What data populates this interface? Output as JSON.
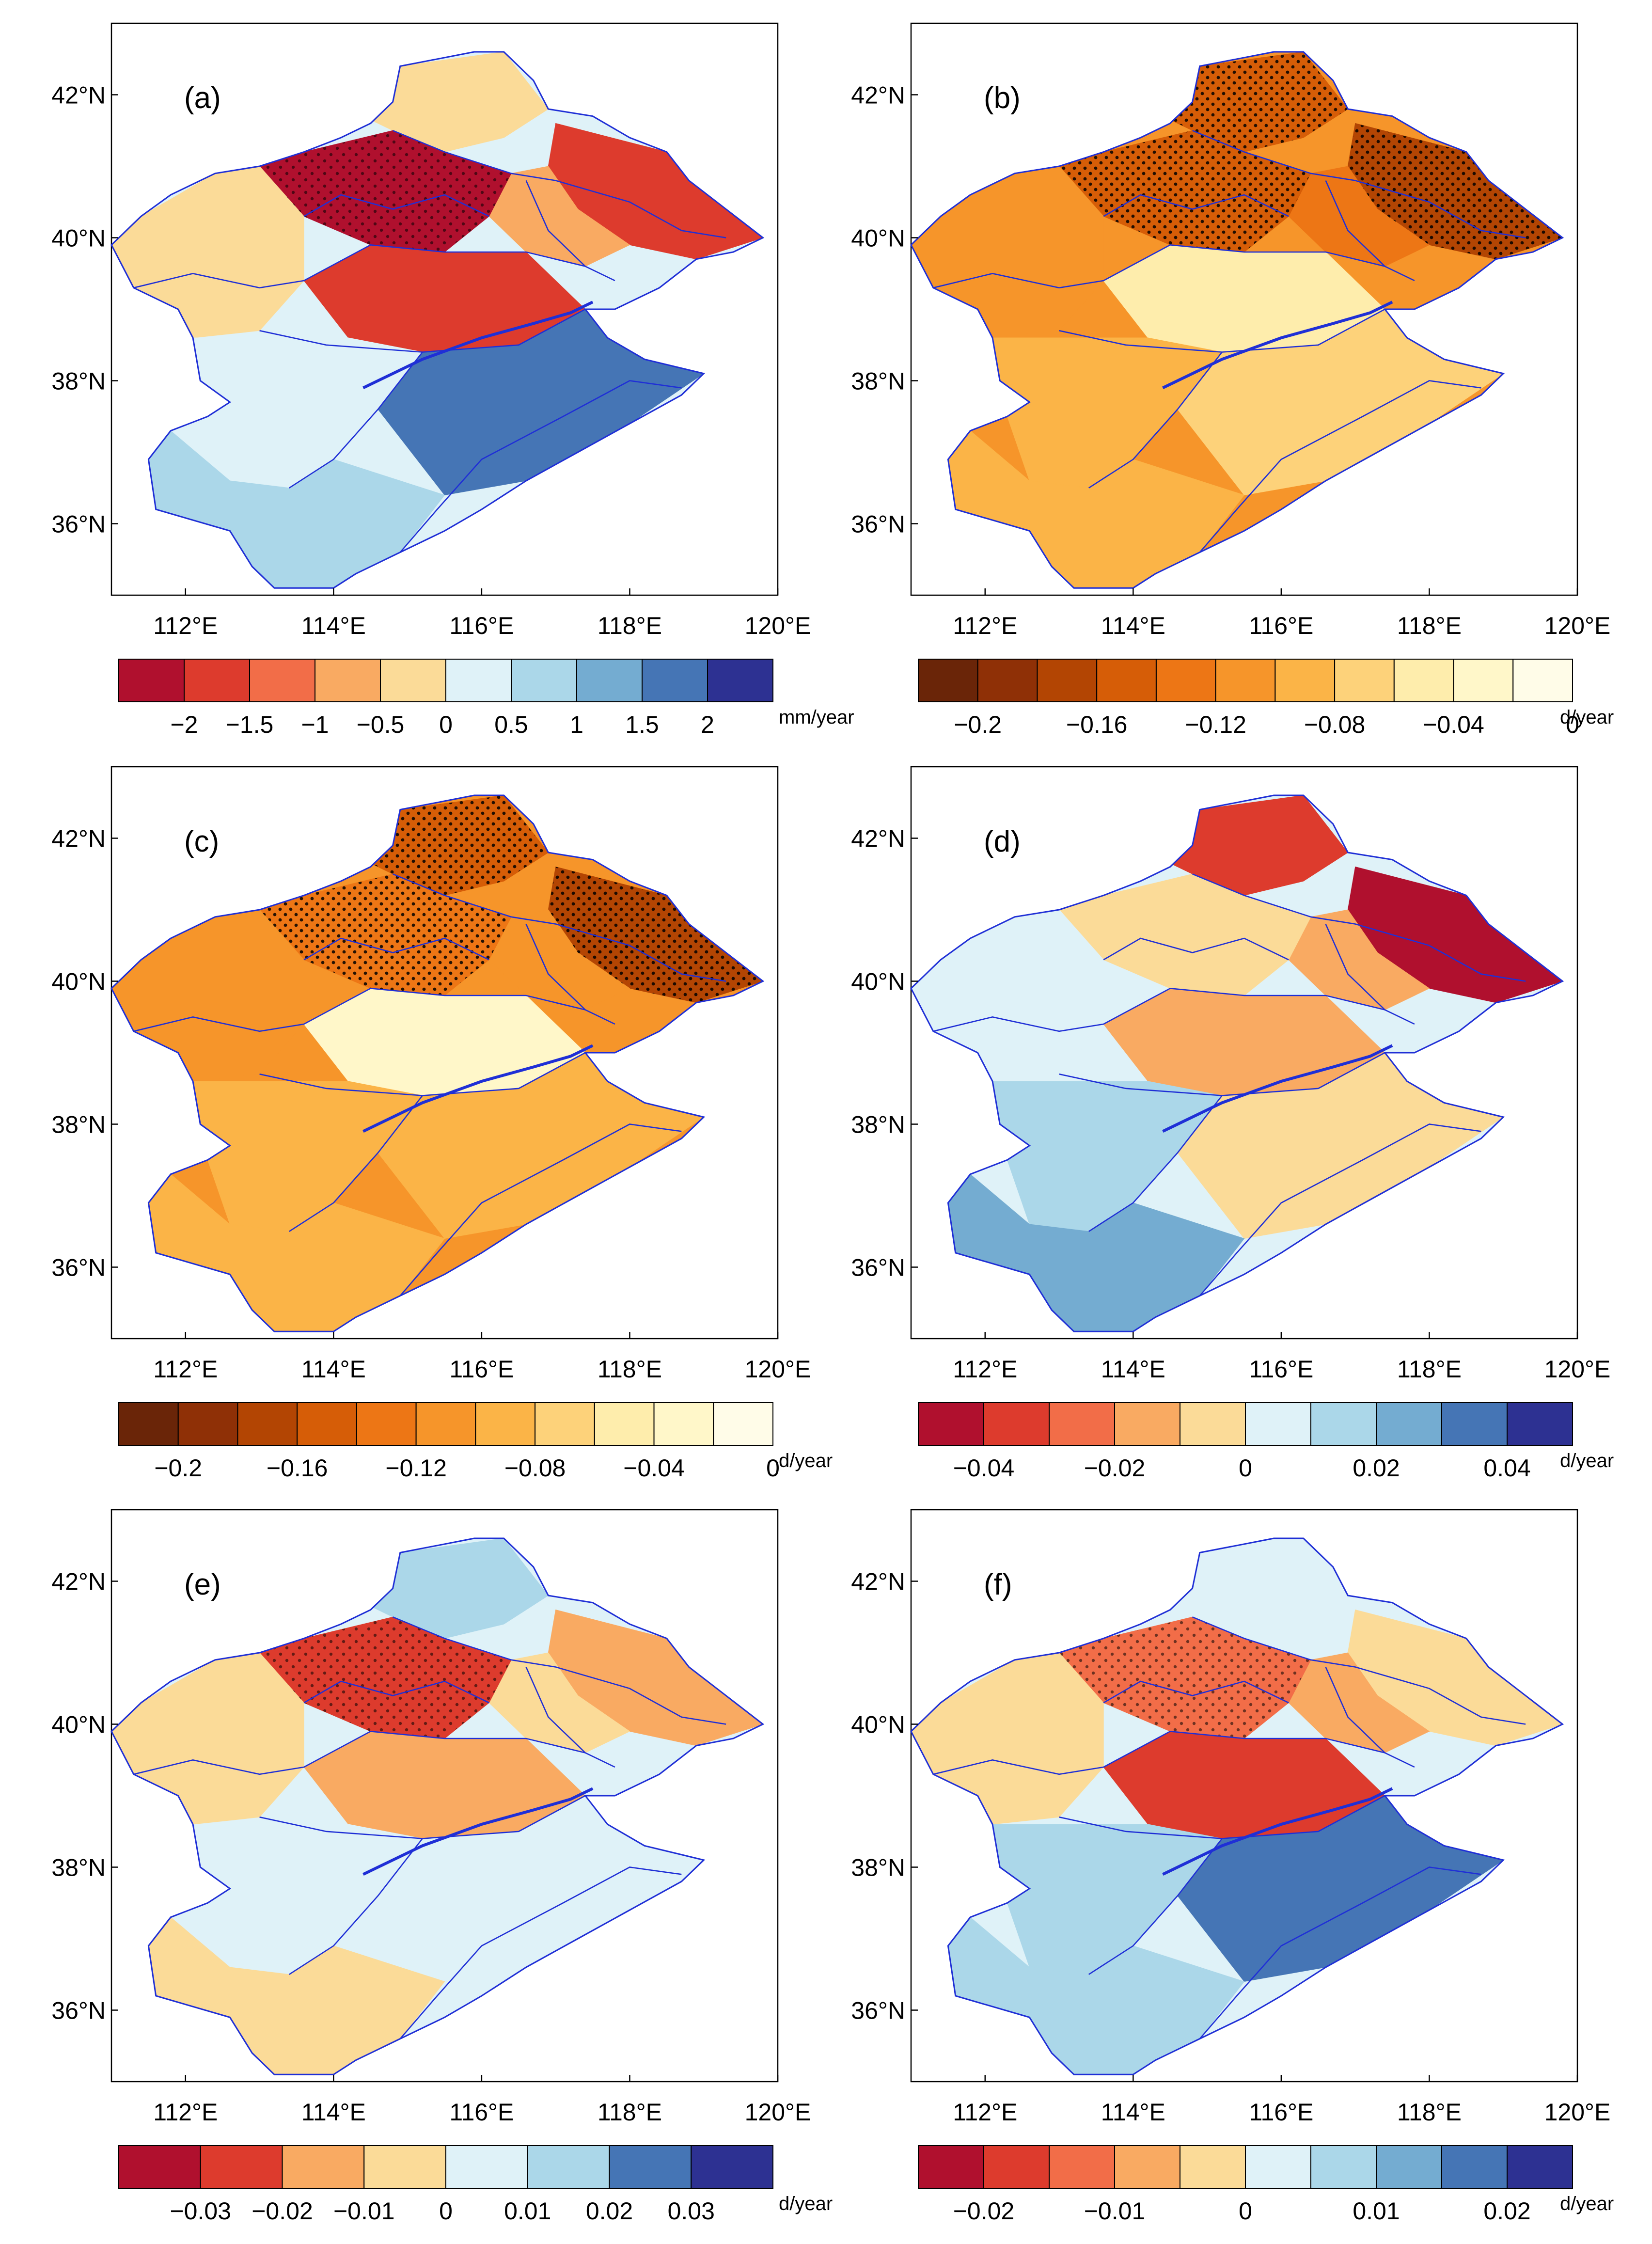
{
  "figure": {
    "lat_labels": [
      "42°N",
      "40°N",
      "38°N",
      "36°N"
    ],
    "lon_labels": [
      "112°E",
      "114°E",
      "116°E",
      "118°E",
      "120°E"
    ]
  },
  "panels": [
    {
      "id": "a",
      "tag": "(a)",
      "unit": "mm/year",
      "stippling": "sparse",
      "colorbar_labels": [
        "−2",
        "−1.5",
        "−1",
        "−0.5",
        "0",
        "0.5",
        "1",
        "1.5",
        "2"
      ],
      "colors": [
        "#b0102e",
        "#dd3b2d",
        "#f26d48",
        "#f9aa62",
        "#fbdb98",
        "#dff2f8",
        "#abd7e9",
        "#74acd1",
        "#4575b5",
        "#2d3192"
      ],
      "regions": [
        {
          "name": "north-mountains",
          "c": 4
        },
        {
          "name": "north-east",
          "c": 1
        },
        {
          "name": "east-plateau",
          "c": 3
        },
        {
          "name": "central-north",
          "c": 0
        },
        {
          "name": "west-plateau",
          "c": 4
        },
        {
          "name": "central-plain",
          "c": 1
        },
        {
          "name": "south-west",
          "c": 5
        },
        {
          "name": "south-east-coast",
          "c": 8
        },
        {
          "name": "far-south",
          "c": 6
        }
      ]
    },
    {
      "id": "b",
      "tag": "(b)",
      "unit": "d/year",
      "stippling": "dense",
      "colorbar_labels": [
        "−0.2",
        "−0.16",
        "−0.12",
        "−0.08",
        "−0.04",
        "0"
      ],
      "colors": [
        "#6a2508",
        "#8f3006",
        "#b34503",
        "#d65d07",
        "#ed7615",
        "#f6952a",
        "#fbb447",
        "#fdd27a",
        "#feedac",
        "#fff7c9",
        "#fffce8"
      ],
      "regions": [
        {
          "name": "north-mountains",
          "c": 3
        },
        {
          "name": "north-east",
          "c": 2
        },
        {
          "name": "east-plateau",
          "c": 4
        },
        {
          "name": "central-north",
          "c": 3
        },
        {
          "name": "west-plateau",
          "c": 5
        },
        {
          "name": "central-plain",
          "c": 8
        },
        {
          "name": "south-west",
          "c": 6
        },
        {
          "name": "south-east-coast",
          "c": 7
        },
        {
          "name": "far-south",
          "c": 6
        }
      ]
    },
    {
      "id": "c",
      "tag": "(c)",
      "unit": "d/year",
      "stippling": "dense",
      "colorbar_labels": [
        "−0.2",
        "−0.16",
        "−0.12",
        "−0.08",
        "−0.04",
        "0"
      ],
      "colors": [
        "#6a2508",
        "#8f3006",
        "#b34503",
        "#d65d07",
        "#ed7615",
        "#f6952a",
        "#fbb447",
        "#fdd27a",
        "#feedac",
        "#fff7c9",
        "#fffce8"
      ],
      "regions": [
        {
          "name": "north-mountains",
          "c": 3
        },
        {
          "name": "north-east",
          "c": 2
        },
        {
          "name": "east-plateau",
          "c": 5
        },
        {
          "name": "central-north",
          "c": 4
        },
        {
          "name": "west-plateau",
          "c": 5
        },
        {
          "name": "central-plain",
          "c": 9
        },
        {
          "name": "south-west",
          "c": 6
        },
        {
          "name": "south-east-coast",
          "c": 6
        },
        {
          "name": "far-south",
          "c": 6
        }
      ]
    },
    {
      "id": "d",
      "tag": "(d)",
      "unit": "d/year",
      "stippling": "none",
      "colorbar_labels": [
        "−0.04",
        "−0.02",
        "0",
        "0.02",
        "0.04"
      ],
      "colors": [
        "#b0102e",
        "#dd3b2d",
        "#f26d48",
        "#f9aa62",
        "#fbdb98",
        "#dff2f8",
        "#abd7e9",
        "#74acd1",
        "#4575b5",
        "#2d3192"
      ],
      "regions": [
        {
          "name": "north-mountains",
          "c": 1
        },
        {
          "name": "north-east",
          "c": 0
        },
        {
          "name": "east-plateau",
          "c": 3
        },
        {
          "name": "central-north",
          "c": 4
        },
        {
          "name": "west-plateau",
          "c": 5
        },
        {
          "name": "central-plain",
          "c": 3
        },
        {
          "name": "south-west",
          "c": 6
        },
        {
          "name": "south-east-coast",
          "c": 4
        },
        {
          "name": "far-south",
          "c": 7
        }
      ]
    },
    {
      "id": "e",
      "tag": "(e)",
      "unit": "d/year",
      "stippling": "sparse",
      "colorbar_labels": [
        "−0.03",
        "−0.02",
        "−0.01",
        "0",
        "0.01",
        "0.02",
        "0.03"
      ],
      "colors": [
        "#b0102e",
        "#dd3b2d",
        "#f9aa62",
        "#fbdb98",
        "#dff2f8",
        "#abd7e9",
        "#4575b5",
        "#2d3192"
      ],
      "regions": [
        {
          "name": "north-mountains",
          "c": 5
        },
        {
          "name": "north-east",
          "c": 2
        },
        {
          "name": "east-plateau",
          "c": 3
        },
        {
          "name": "central-north",
          "c": 1
        },
        {
          "name": "west-plateau",
          "c": 3
        },
        {
          "name": "central-plain",
          "c": 2
        },
        {
          "name": "south-west",
          "c": 4
        },
        {
          "name": "south-east-coast",
          "c": 4
        },
        {
          "name": "far-south",
          "c": 3
        }
      ]
    },
    {
      "id": "f",
      "tag": "(f)",
      "unit": "d/year",
      "stippling": "sparse",
      "colorbar_labels": [
        "−0.02",
        "−0.01",
        "0",
        "0.01",
        "0.02"
      ],
      "colors": [
        "#b0102e",
        "#dd3b2d",
        "#f26d48",
        "#f9aa62",
        "#fbdb98",
        "#dff2f8",
        "#abd7e9",
        "#74acd1",
        "#4575b5",
        "#2d3192"
      ],
      "regions": [
        {
          "name": "north-mountains",
          "c": 5
        },
        {
          "name": "north-east",
          "c": 4
        },
        {
          "name": "east-plateau",
          "c": 3
        },
        {
          "name": "central-north",
          "c": 2
        },
        {
          "name": "west-plateau",
          "c": 4
        },
        {
          "name": "central-plain",
          "c": 1
        },
        {
          "name": "south-west",
          "c": 6
        },
        {
          "name": "south-east-coast",
          "c": 8
        },
        {
          "name": "far-south",
          "c": 6
        }
      ]
    }
  ],
  "style": {
    "basin_outline": "#1f2fd6",
    "frame": "#000000"
  }
}
